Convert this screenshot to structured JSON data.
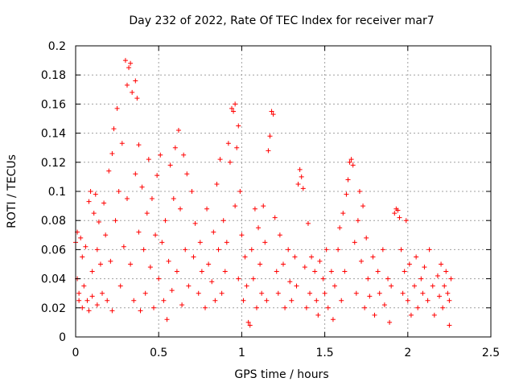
{
  "chart_data": {
    "type": "scatter",
    "title": "Day 232 of 2022, Rate Of TEC Index for receiver mar7",
    "xlabel": "GPS time / hours",
    "ylabel": "ROTI / TECUs",
    "xlim": [
      0,
      2.5
    ],
    "ylim": [
      0,
      0.2
    ],
    "xticks": [
      0,
      0.5,
      1,
      1.5,
      2,
      2.5
    ],
    "yticks": [
      0,
      0.02,
      0.04,
      0.06,
      0.08,
      0.1,
      0.12,
      0.14,
      0.16,
      0.18,
      0.2
    ],
    "xtick_labels": [
      "0",
      "0.5",
      "1",
      "1.5",
      "2",
      "2.5"
    ],
    "ytick_labels": [
      "0",
      "0.02",
      "0.04",
      "0.06",
      "0.08",
      "0.1",
      "0.12",
      "0.14",
      "0.16",
      "0.18",
      "0.2"
    ],
    "grid": true,
    "marker": "plus",
    "color": "#ff0000",
    "series": [
      {
        "points": [
          [
            0.0,
            0.065
          ],
          [
            0.01,
            0.072
          ],
          [
            0.01,
            0.04
          ],
          [
            0.02,
            0.03
          ],
          [
            0.02,
            0.025
          ],
          [
            0.03,
            0.068
          ],
          [
            0.04,
            0.055
          ],
          [
            0.04,
            0.02
          ],
          [
            0.05,
            0.035
          ],
          [
            0.06,
            0.062
          ],
          [
            0.07,
            0.025
          ],
          [
            0.08,
            0.093
          ],
          [
            0.08,
            0.018
          ],
          [
            0.09,
            0.1
          ],
          [
            0.1,
            0.045
          ],
          [
            0.1,
            0.028
          ],
          [
            0.11,
            0.085
          ],
          [
            0.12,
            0.098
          ],
          [
            0.13,
            0.06
          ],
          [
            0.13,
            0.022
          ],
          [
            0.14,
            0.079
          ],
          [
            0.15,
            0.05
          ],
          [
            0.16,
            0.03
          ],
          [
            0.17,
            0.092
          ],
          [
            0.18,
            0.07
          ],
          [
            0.19,
            0.025
          ],
          [
            0.2,
            0.114
          ],
          [
            0.21,
            0.052
          ],
          [
            0.22,
            0.126
          ],
          [
            0.22,
            0.018
          ],
          [
            0.23,
            0.143
          ],
          [
            0.24,
            0.08
          ],
          [
            0.25,
            0.157
          ],
          [
            0.26,
            0.1
          ],
          [
            0.27,
            0.035
          ],
          [
            0.28,
            0.133
          ],
          [
            0.29,
            0.062
          ],
          [
            0.3,
            0.19
          ],
          [
            0.31,
            0.173
          ],
          [
            0.31,
            0.095
          ],
          [
            0.32,
            0.185
          ],
          [
            0.33,
            0.188
          ],
          [
            0.33,
            0.05
          ],
          [
            0.34,
            0.168
          ],
          [
            0.35,
            0.025
          ],
          [
            0.36,
            0.176
          ],
          [
            0.36,
            0.112
          ],
          [
            0.37,
            0.164
          ],
          [
            0.38,
            0.072
          ],
          [
            0.38,
            0.132
          ],
          [
            0.39,
            0.018
          ],
          [
            0.4,
            0.103
          ],
          [
            0.41,
            0.06
          ],
          [
            0.42,
            0.03
          ],
          [
            0.43,
            0.085
          ],
          [
            0.44,
            0.122
          ],
          [
            0.45,
            0.048
          ],
          [
            0.46,
            0.095
          ],
          [
            0.47,
            0.02
          ],
          [
            0.48,
            0.07
          ],
          [
            0.49,
            0.111
          ],
          [
            0.5,
            0.04
          ],
          [
            0.51,
            0.125
          ],
          [
            0.52,
            0.065
          ],
          [
            0.53,
            0.025
          ],
          [
            0.54,
            0.08
          ],
          [
            0.55,
            0.012
          ],
          [
            0.56,
            0.052
          ],
          [
            0.57,
            0.118
          ],
          [
            0.58,
            0.032
          ],
          [
            0.59,
            0.095
          ],
          [
            0.6,
            0.13
          ],
          [
            0.61,
            0.045
          ],
          [
            0.62,
            0.142
          ],
          [
            0.63,
            0.088
          ],
          [
            0.64,
            0.022
          ],
          [
            0.65,
            0.125
          ],
          [
            0.66,
            0.06
          ],
          [
            0.67,
            0.112
          ],
          [
            0.68,
            0.035
          ],
          [
            0.7,
            0.1
          ],
          [
            0.71,
            0.055
          ],
          [
            0.72,
            0.078
          ],
          [
            0.74,
            0.03
          ],
          [
            0.75,
            0.065
          ],
          [
            0.76,
            0.045
          ],
          [
            0.78,
            0.02
          ],
          [
            0.79,
            0.088
          ],
          [
            0.8,
            0.05
          ],
          [
            0.82,
            0.038
          ],
          [
            0.83,
            0.072
          ],
          [
            0.84,
            0.025
          ],
          [
            0.85,
            0.105
          ],
          [
            0.86,
            0.06
          ],
          [
            0.87,
            0.122
          ],
          [
            0.88,
            0.03
          ],
          [
            0.89,
            0.08
          ],
          [
            0.9,
            0.045
          ],
          [
            0.91,
            0.065
          ],
          [
            0.92,
            0.133
          ],
          [
            0.93,
            0.12
          ],
          [
            0.94,
            0.157
          ],
          [
            0.95,
            0.155
          ],
          [
            0.96,
            0.16
          ],
          [
            0.96,
            0.09
          ],
          [
            0.97,
            0.13
          ],
          [
            0.98,
            0.145
          ],
          [
            0.98,
            0.04
          ],
          [
            0.99,
            0.1
          ],
          [
            1.0,
            0.07
          ],
          [
            1.01,
            0.025
          ],
          [
            1.02,
            0.055
          ],
          [
            1.03,
            0.035
          ],
          [
            1.04,
            0.01
          ],
          [
            1.05,
            0.008
          ],
          [
            1.06,
            0.06
          ],
          [
            1.07,
            0.04
          ],
          [
            1.08,
            0.088
          ],
          [
            1.09,
            0.02
          ],
          [
            1.1,
            0.075
          ],
          [
            1.11,
            0.05
          ],
          [
            1.12,
            0.03
          ],
          [
            1.13,
            0.09
          ],
          [
            1.14,
            0.065
          ],
          [
            1.15,
            0.025
          ],
          [
            1.16,
            0.128
          ],
          [
            1.17,
            0.138
          ],
          [
            1.18,
            0.155
          ],
          [
            1.19,
            0.153
          ],
          [
            1.2,
            0.082
          ],
          [
            1.21,
            0.045
          ],
          [
            1.22,
            0.03
          ],
          [
            1.23,
            0.07
          ],
          [
            1.25,
            0.05
          ],
          [
            1.26,
            0.02
          ],
          [
            1.28,
            0.06
          ],
          [
            1.29,
            0.038
          ],
          [
            1.3,
            0.025
          ],
          [
            1.32,
            0.055
          ],
          [
            1.33,
            0.035
          ],
          [
            1.34,
            0.105
          ],
          [
            1.35,
            0.115
          ],
          [
            1.36,
            0.11
          ],
          [
            1.37,
            0.102
          ],
          [
            1.38,
            0.048
          ],
          [
            1.39,
            0.02
          ],
          [
            1.4,
            0.078
          ],
          [
            1.41,
            0.03
          ],
          [
            1.42,
            0.055
          ],
          [
            1.44,
            0.045
          ],
          [
            1.45,
            0.025
          ],
          [
            1.46,
            0.015
          ],
          [
            1.47,
            0.052
          ],
          [
            1.49,
            0.04
          ],
          [
            1.5,
            0.03
          ],
          [
            1.51,
            0.06
          ],
          [
            1.52,
            0.02
          ],
          [
            1.54,
            0.045
          ],
          [
            1.55,
            0.012
          ],
          [
            1.56,
            0.035
          ],
          [
            1.58,
            0.06
          ],
          [
            1.59,
            0.075
          ],
          [
            1.6,
            0.025
          ],
          [
            1.61,
            0.085
          ],
          [
            1.62,
            0.045
          ],
          [
            1.63,
            0.098
          ],
          [
            1.64,
            0.108
          ],
          [
            1.65,
            0.12
          ],
          [
            1.66,
            0.122
          ],
          [
            1.67,
            0.118
          ],
          [
            1.68,
            0.065
          ],
          [
            1.69,
            0.03
          ],
          [
            1.7,
            0.08
          ],
          [
            1.71,
            0.1
          ],
          [
            1.72,
            0.052
          ],
          [
            1.73,
            0.09
          ],
          [
            1.74,
            0.02
          ],
          [
            1.75,
            0.068
          ],
          [
            1.76,
            0.04
          ],
          [
            1.77,
            0.028
          ],
          [
            1.79,
            0.055
          ],
          [
            1.8,
            0.015
          ],
          [
            1.82,
            0.045
          ],
          [
            1.83,
            0.03
          ],
          [
            1.85,
            0.06
          ],
          [
            1.86,
            0.022
          ],
          [
            1.88,
            0.04
          ],
          [
            1.89,
            0.01
          ],
          [
            1.9,
            0.035
          ],
          [
            1.92,
            0.085
          ],
          [
            1.93,
            0.088
          ],
          [
            1.94,
            0.087
          ],
          [
            1.95,
            0.082
          ],
          [
            1.96,
            0.06
          ],
          [
            1.97,
            0.03
          ],
          [
            1.98,
            0.045
          ],
          [
            1.99,
            0.08
          ],
          [
            2.0,
            0.025
          ],
          [
            2.01,
            0.05
          ],
          [
            2.02,
            0.015
          ],
          [
            2.04,
            0.035
          ],
          [
            2.05,
            0.055
          ],
          [
            2.06,
            0.02
          ],
          [
            2.08,
            0.04
          ],
          [
            2.09,
            0.03
          ],
          [
            2.1,
            0.048
          ],
          [
            2.12,
            0.025
          ],
          [
            2.13,
            0.06
          ],
          [
            2.15,
            0.035
          ],
          [
            2.16,
            0.015
          ],
          [
            2.18,
            0.042
          ],
          [
            2.19,
            0.028
          ],
          [
            2.2,
            0.05
          ],
          [
            2.21,
            0.02
          ],
          [
            2.22,
            0.035
          ],
          [
            2.23,
            0.045
          ],
          [
            2.24,
            0.03
          ],
          [
            2.25,
            0.008
          ],
          [
            2.25,
            0.025
          ],
          [
            2.26,
            0.04
          ]
        ]
      }
    ]
  }
}
